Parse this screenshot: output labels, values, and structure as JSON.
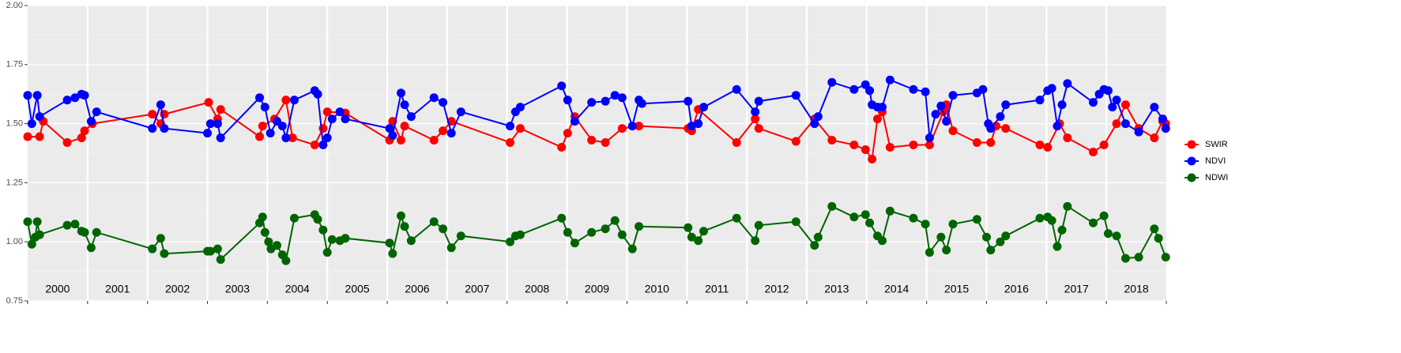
{
  "chart_data": {
    "type": "line",
    "xlim": [
      2000,
      2019
    ],
    "xticks": [
      2000,
      2001,
      2002,
      2003,
      2004,
      2005,
      2006,
      2007,
      2008,
      2009,
      2010,
      2011,
      2012,
      2013,
      2014,
      2015,
      2016,
      2017,
      2018,
      2019
    ],
    "ylim": [
      0.75,
      2.0
    ],
    "yticks": [
      0.75,
      {
        "value": 1,
        "label": "1.00"
      },
      1.25,
      {
        "value": 1.5,
        "label": "1.50"
      },
      1.75,
      {
        "value": 2,
        "label": "2.00"
      }
    ],
    "grid": true,
    "legend": "right",
    "year_labels": [
      "2000",
      "2001",
      "2002",
      "2003",
      "2004",
      "2005",
      "2006",
      "2007",
      "2008",
      "2009",
      "2010",
      "2011",
      "2012",
      "2013",
      "2014",
      "2015",
      "2016",
      "2017",
      "2018"
    ],
    "series": [
      {
        "name": "SWIR",
        "color": "#ff0000",
        "x": [
          2000.0,
          2000.2,
          2000.26,
          2000.66,
          2000.9,
          2000.95,
          2001.08,
          2002.08,
          2002.22,
          2002.28,
          2003.02,
          2003.17,
          2003.22,
          2003.87,
          2003.92,
          2004.12,
          2004.31,
          2004.42,
          2004.79,
          2004.93,
          2005.0,
          2005.3,
          2006.04,
          2006.09,
          2006.23,
          2006.29,
          2006.78,
          2006.93,
          2007.07,
          2008.05,
          2008.22,
          2008.91,
          2009.01,
          2009.13,
          2009.41,
          2009.64,
          2009.92,
          2010.2,
          2011.02,
          2011.08,
          2011.19,
          2011.83,
          2012.14,
          2012.2,
          2012.82,
          2013.13,
          2013.42,
          2013.79,
          2013.98,
          2014.09,
          2014.18,
          2014.26,
          2014.39,
          2014.78,
          2015.05,
          2015.28,
          2015.33,
          2015.44,
          2015.84,
          2016.07,
          2016.16,
          2016.32,
          2016.89,
          2017.02,
          2017.22,
          2017.35,
          2017.78,
          2017.96,
          2018.17,
          2018.32,
          2018.54,
          2018.8,
          2018.94,
          2018.99
        ],
        "values": [
          1.445,
          1.445,
          1.51,
          1.42,
          1.44,
          1.47,
          1.5,
          1.54,
          1.5,
          1.54,
          1.59,
          1.52,
          1.56,
          1.445,
          1.49,
          1.52,
          1.6,
          1.44,
          1.41,
          1.48,
          1.55,
          1.545,
          1.43,
          1.51,
          1.43,
          1.49,
          1.43,
          1.47,
          1.51,
          1.42,
          1.48,
          1.4,
          1.46,
          1.53,
          1.43,
          1.42,
          1.48,
          1.49,
          1.48,
          1.47,
          1.56,
          1.42,
          1.52,
          1.48,
          1.425,
          1.52,
          1.43,
          1.41,
          1.39,
          1.35,
          1.52,
          1.55,
          1.4,
          1.41,
          1.41,
          1.55,
          1.58,
          1.47,
          1.42,
          1.42,
          1.49,
          1.48,
          1.41,
          1.4,
          1.5,
          1.44,
          1.38,
          1.41,
          1.5,
          1.58,
          1.48,
          1.44,
          1.51,
          1.5
        ]
      },
      {
        "name": "NDVI",
        "color": "#0000ff",
        "x": [
          2000.0,
          2000.07,
          2000.16,
          2000.2,
          2000.66,
          2000.79,
          2000.9,
          2000.95,
          2001.06,
          2001.15,
          2002.08,
          2002.22,
          2002.28,
          2003.0,
          2003.05,
          2003.17,
          2003.22,
          2003.87,
          2003.96,
          2004.05,
          2004.16,
          2004.25,
          2004.31,
          2004.45,
          2004.79,
          2004.84,
          2004.93,
          2005.0,
          2005.08,
          2005.21,
          2005.3,
          2006.04,
          2006.09,
          2006.23,
          2006.29,
          2006.4,
          2006.78,
          2006.93,
          2007.07,
          2007.23,
          2008.05,
          2008.14,
          2008.22,
          2008.91,
          2009.01,
          2009.13,
          2009.41,
          2009.64,
          2009.8,
          2009.92,
          2010.09,
          2010.2,
          2010.25,
          2011.02,
          2011.08,
          2011.19,
          2011.28,
          2011.83,
          2012.14,
          2012.2,
          2012.82,
          2013.13,
          2013.19,
          2013.42,
          2013.79,
          2013.98,
          2014.05,
          2014.09,
          2014.18,
          2014.26,
          2014.39,
          2014.78,
          2014.98,
          2015.05,
          2015.15,
          2015.24,
          2015.33,
          2015.44,
          2015.84,
          2015.94,
          2016.03,
          2016.07,
          2016.23,
          2016.32,
          2016.89,
          2017.02,
          2017.09,
          2017.18,
          2017.26,
          2017.35,
          2017.78,
          2017.88,
          2017.96,
          2018.03,
          2018.1,
          2018.17,
          2018.32,
          2018.54,
          2018.8,
          2018.94,
          2018.99
        ],
        "values": [
          1.62,
          1.5,
          1.62,
          1.53,
          1.6,
          1.61,
          1.625,
          1.62,
          1.51,
          1.55,
          1.48,
          1.58,
          1.48,
          1.46,
          1.5,
          1.5,
          1.44,
          1.61,
          1.57,
          1.46,
          1.51,
          1.49,
          1.44,
          1.6,
          1.64,
          1.625,
          1.41,
          1.44,
          1.52,
          1.55,
          1.52,
          1.48,
          1.45,
          1.63,
          1.58,
          1.53,
          1.61,
          1.59,
          1.46,
          1.55,
          1.49,
          1.55,
          1.57,
          1.66,
          1.6,
          1.51,
          1.59,
          1.595,
          1.62,
          1.61,
          1.49,
          1.6,
          1.585,
          1.595,
          1.49,
          1.5,
          1.57,
          1.645,
          1.55,
          1.595,
          1.62,
          1.5,
          1.53,
          1.675,
          1.645,
          1.665,
          1.64,
          1.58,
          1.57,
          1.57,
          1.685,
          1.645,
          1.635,
          1.44,
          1.54,
          1.575,
          1.51,
          1.62,
          1.63,
          1.645,
          1.5,
          1.48,
          1.53,
          1.58,
          1.6,
          1.64,
          1.65,
          1.49,
          1.58,
          1.67,
          1.59,
          1.625,
          1.645,
          1.64,
          1.57,
          1.6,
          1.5,
          1.465,
          1.57,
          1.52,
          1.48
        ]
      },
      {
        "name": "NDWI",
        "color": "#006400",
        "x": [
          2000.0,
          2000.07,
          2000.13,
          2000.16,
          2000.2,
          2000.66,
          2000.79,
          2000.9,
          2000.95,
          2001.06,
          2001.15,
          2002.08,
          2002.22,
          2002.28,
          2003.0,
          2003.05,
          2003.17,
          2003.22,
          2003.87,
          2003.92,
          2003.96,
          2004.02,
          2004.06,
          2004.16,
          2004.25,
          2004.31,
          2004.45,
          2004.79,
          2004.84,
          2004.93,
          2005.0,
          2005.08,
          2005.21,
          2005.3,
          2006.04,
          2006.09,
          2006.23,
          2006.29,
          2006.4,
          2006.78,
          2006.93,
          2007.07,
          2007.23,
          2008.05,
          2008.14,
          2008.22,
          2008.91,
          2009.01,
          2009.13,
          2009.41,
          2009.64,
          2009.8,
          2009.92,
          2010.09,
          2010.2,
          2011.02,
          2011.08,
          2011.19,
          2011.28,
          2011.83,
          2012.14,
          2012.2,
          2012.82,
          2013.13,
          2013.19,
          2013.42,
          2013.79,
          2013.98,
          2014.05,
          2014.18,
          2014.26,
          2014.39,
          2014.78,
          2014.98,
          2015.05,
          2015.24,
          2015.33,
          2015.44,
          2015.84,
          2016.0,
          2016.07,
          2016.23,
          2016.32,
          2016.89,
          2017.02,
          2017.09,
          2017.18,
          2017.26,
          2017.35,
          2017.78,
          2017.96,
          2018.03,
          2018.17,
          2018.32,
          2018.54,
          2018.8,
          2018.87,
          2018.99
        ],
        "values": [
          1.085,
          0.99,
          1.02,
          1.085,
          1.03,
          1.07,
          1.075,
          1.045,
          1.04,
          0.975,
          1.04,
          0.97,
          1.015,
          0.95,
          0.96,
          0.96,
          0.97,
          0.925,
          1.08,
          1.105,
          1.04,
          1.0,
          0.97,
          0.985,
          0.945,
          0.92,
          1.1,
          1.115,
          1.095,
          1.05,
          0.955,
          1.01,
          1.005,
          1.015,
          0.995,
          0.95,
          1.11,
          1.065,
          1.005,
          1.085,
          1.055,
          0.975,
          1.025,
          1.0,
          1.025,
          1.03,
          1.1,
          1.04,
          0.995,
          1.04,
          1.055,
          1.09,
          1.03,
          0.97,
          1.065,
          1.06,
          1.02,
          1.005,
          1.045,
          1.1,
          1.005,
          1.07,
          1.085,
          0.985,
          1.02,
          1.15,
          1.105,
          1.115,
          1.08,
          1.025,
          1.005,
          1.13,
          1.1,
          1.075,
          0.955,
          1.02,
          0.965,
          1.075,
          1.095,
          1.02,
          0.965,
          1.0,
          1.025,
          1.1,
          1.105,
          1.09,
          0.98,
          1.05,
          1.15,
          1.08,
          1.11,
          1.035,
          1.025,
          0.93,
          0.935,
          1.055,
          1.015,
          0.935
        ]
      }
    ]
  }
}
